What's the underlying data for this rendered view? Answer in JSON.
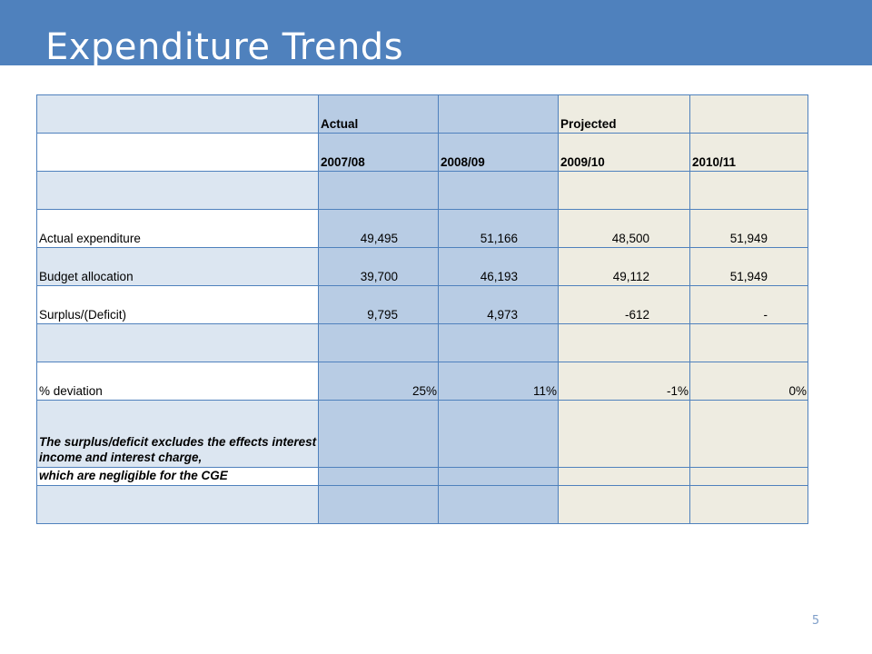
{
  "slide": {
    "title": "Expenditure Trends",
    "page_number": "5",
    "colors": {
      "title_bar": "#4f81bd",
      "label_column": "#dce6f1",
      "actual_columns": "#b8cce4",
      "projected_columns": "#eeece1",
      "grid": "#4f81bd"
    }
  },
  "table": {
    "header_top": {
      "actual": "Actual",
      "projected": "Projected"
    },
    "years": [
      "2007/08",
      "2008/09",
      "2009/10",
      "2010/11"
    ],
    "rows": [
      {
        "label": "Actual expenditure",
        "values": [
          "49,495",
          "51,166",
          "48,500",
          "51,949"
        ]
      },
      {
        "label": "Budget allocation",
        "values": [
          "39,700",
          "46,193",
          "49,112",
          "51,949"
        ]
      },
      {
        "label": "Surplus/(Deficit)",
        "values": [
          "9,795",
          "4,973",
          "-612",
          "-"
        ]
      }
    ],
    "deviation": {
      "label": "% deviation",
      "values": [
        "25%",
        "11%",
        "-1%",
        "0%"
      ]
    },
    "note_line1": "The surplus/deficit excludes the effects interest income and interest charge,",
    "note_line2": "which are negligible for the CGE"
  }
}
